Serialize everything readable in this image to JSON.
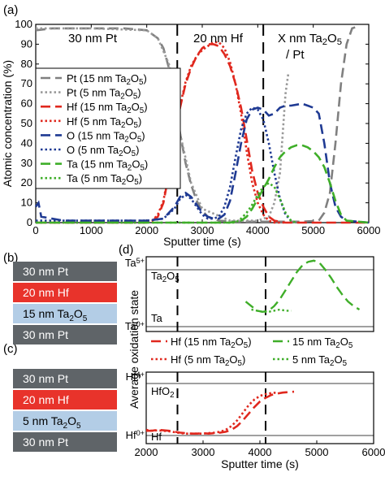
{
  "panel_labels": {
    "a": "(a)",
    "b": "(b)",
    "c": "(c)",
    "d": "(d)"
  },
  "stacks": {
    "b": [
      {
        "label": "30 nm Pt",
        "color": "#5f6468",
        "text_color": "#ffffff"
      },
      {
        "label": "20 nm Hf",
        "color": "#e8332b",
        "text_color": "#ffffff"
      },
      {
        "label": "15 nm Ta2O5",
        "color": "#b3cde6",
        "text_color": "#000000"
      },
      {
        "label": "30 nm Pt",
        "color": "#5f6468",
        "text_color": "#ffffff"
      }
    ],
    "c": [
      {
        "label": "30 nm Pt",
        "color": "#5f6468",
        "text_color": "#ffffff"
      },
      {
        "label": "20 nm Hf",
        "color": "#e8332b",
        "text_color": "#ffffff"
      },
      {
        "label": "5 nm Ta2O5",
        "color": "#b3cde6",
        "text_color": "#000000"
      },
      {
        "label": "30 nm Pt",
        "color": "#5f6468",
        "text_color": "#ffffff"
      }
    ]
  },
  "chart_data": [
    {
      "type": "line",
      "panel": "(a)",
      "xlabel": "Sputter time (s)",
      "ylabel": "Atomic concentration (%)",
      "xlim": [
        0,
        6000
      ],
      "ylim": [
        0,
        100
      ],
      "xticks": [
        0,
        1000,
        2000,
        3000,
        4000,
        5000,
        6000
      ],
      "yticks": [
        0,
        10,
        20,
        30,
        40,
        50,
        60,
        70,
        80,
        90,
        100
      ],
      "vlines": [
        2550,
        4100
      ],
      "region_labels": [
        "30 nm Pt",
        "20 nm Hf",
        "X nm Ta2O5",
        "/ Pt"
      ],
      "legend_position": "left",
      "series": [
        {
          "name": "Pt (15 nm Ta2O5)",
          "color": "#808080",
          "style": "dash",
          "x": [
            0,
            300,
            1000,
            1600,
            2000,
            2200,
            2300,
            2400,
            2500,
            2600,
            2700,
            2800,
            2900,
            3000,
            3100,
            3300,
            3600,
            4000,
            4400,
            4800,
            5100,
            5200,
            5300,
            5400,
            5500,
            5600,
            5700,
            5800
          ],
          "y": [
            97,
            98,
            98,
            98,
            97,
            93,
            88,
            78,
            64,
            45,
            30,
            19,
            11,
            6,
            3,
            1,
            0.5,
            0.5,
            0.5,
            0.5,
            1,
            5,
            15,
            40,
            70,
            90,
            98,
            99
          ]
        },
        {
          "name": "Pt (5 nm Ta2O5)",
          "color": "#999999",
          "style": "dot",
          "x": [
            0,
            1000,
            2000,
            2200,
            2400,
            2500,
            2600,
            2800,
            3000,
            3500,
            4000,
            4200,
            4300,
            4400,
            4450,
            4500,
            4550
          ],
          "y": [
            98,
            98,
            97,
            93,
            80,
            66,
            45,
            20,
            7,
            1,
            1,
            3,
            10,
            25,
            45,
            65,
            75
          ]
        },
        {
          "name": "Hf (15 nm Ta2O5)",
          "color": "#e0281e",
          "style": "dash",
          "x": [
            0,
            1000,
            2000,
            2100,
            2200,
            2300,
            2400,
            2500,
            2600,
            2700,
            2800,
            2900,
            3000,
            3100,
            3200,
            3300,
            3400,
            3500,
            3600,
            3700,
            3800,
            3900,
            4000,
            4100,
            4200,
            4300,
            4500,
            5000,
            6000
          ],
          "y": [
            0,
            0,
            0,
            1,
            3,
            10,
            25,
            42,
            58,
            70,
            78,
            84,
            88,
            90,
            90,
            89,
            85,
            79,
            70,
            58,
            42,
            26,
            15,
            8,
            3,
            1,
            0,
            0,
            0
          ]
        },
        {
          "name": "Hf (5 nm Ta2O5)",
          "color": "#e0281e",
          "style": "dot",
          "x": [
            0,
            1000,
            2000,
            2100,
            2200,
            2300,
            2400,
            2500,
            2600,
            2700,
            2800,
            2900,
            3000,
            3100,
            3200,
            3300,
            3400,
            3500,
            3600,
            3700,
            3800,
            3900,
            4000,
            4100,
            4200,
            4300,
            4500
          ],
          "y": [
            0,
            0,
            0,
            1,
            4,
            11,
            26,
            44,
            59,
            71,
            79,
            84,
            87,
            89,
            91,
            91,
            88,
            81,
            70,
            55,
            36,
            20,
            10,
            4,
            1,
            0,
            0
          ]
        },
        {
          "name": "O (15 nm Ta2O5)",
          "color": "#1f3a93",
          "style": "dash",
          "x": [
            0,
            50,
            100,
            500,
            1000,
            2000,
            2300,
            2500,
            2600,
            2700,
            2800,
            2900,
            3000,
            3100,
            3200,
            3300,
            3400,
            3500,
            3600,
            3700,
            3800,
            3900,
            4000,
            4100,
            4200,
            4300,
            4400,
            4500,
            4600,
            4800,
            5000,
            5100,
            5200,
            5300,
            5400,
            5500,
            5600,
            6000
          ],
          "y": [
            8,
            10,
            3,
            1,
            1,
            1,
            2,
            8,
            13,
            15,
            13,
            9,
            5,
            3,
            2,
            2,
            4,
            11,
            25,
            40,
            52,
            57,
            58,
            57,
            54,
            55,
            58,
            59,
            59,
            60,
            58,
            55,
            40,
            20,
            8,
            3,
            1,
            0
          ]
        },
        {
          "name": "O (5 nm Ta2O5)",
          "color": "#1f3a93",
          "style": "dot",
          "x": [
            0,
            1000,
            2000,
            2300,
            2500,
            2600,
            2700,
            2800,
            2900,
            3000,
            3100,
            3200,
            3300,
            3400,
            3500,
            3600,
            3700,
            3800,
            3900,
            4000,
            4100,
            4200,
            4300,
            4400,
            4500,
            4600
          ],
          "y": [
            1,
            1,
            1,
            2,
            7,
            12,
            14,
            12,
            8,
            4,
            2,
            2,
            3,
            8,
            18,
            33,
            47,
            55,
            58,
            57,
            52,
            40,
            25,
            12,
            4,
            1
          ]
        },
        {
          "name": "Ta (15 nm Ta2O5)",
          "color": "#3fae29",
          "style": "dash",
          "x": [
            0,
            1000,
            2000,
            3500,
            3700,
            3800,
            3900,
            4000,
            4100,
            4200,
            4300,
            4400,
            4500,
            4600,
            4700,
            4800,
            4900,
            5000,
            5100,
            5200,
            5300,
            5400,
            5500,
            5600,
            6000
          ],
          "y": [
            0,
            0,
            0,
            0,
            1,
            3,
            7,
            12,
            17,
            22,
            28,
            33,
            36,
            38,
            39,
            39,
            38,
            36,
            33,
            28,
            20,
            11,
            4,
            1,
            0
          ]
        },
        {
          "name": "Ta (5 nm Ta2O5)",
          "color": "#3fae29",
          "style": "dot",
          "x": [
            0,
            1000,
            2000,
            3600,
            3700,
            3800,
            3900,
            4000,
            4100,
            4200,
            4300,
            4400,
            4500,
            4600,
            4700
          ],
          "y": [
            0,
            0,
            0,
            0,
            2,
            5,
            9,
            14,
            18,
            20,
            18,
            12,
            5,
            1,
            0
          ]
        }
      ]
    },
    {
      "type": "line",
      "panel": "(d) top",
      "ylabel": "Average oxidation state",
      "xlim": [
        2000,
        6000
      ],
      "y_labels": [
        "Ta5+",
        "Ta0+"
      ],
      "ref_labels": [
        "Ta2O5",
        "Ta"
      ],
      "vlines": [
        2550,
        4100
      ],
      "series": [
        {
          "name": "15 nm Ta2O5",
          "color": "#3fae29",
          "style": "dash",
          "x": [
            3750,
            3850,
            3950,
            4050,
            4150,
            4250,
            4350,
            4450,
            4550,
            4650,
            4750,
            4850,
            4950,
            5050,
            5150,
            5250,
            5350,
            5450,
            5550,
            5650,
            5750
          ],
          "y": [
            0.22,
            0.18,
            0.14,
            0.13,
            0.14,
            0.18,
            0.24,
            0.32,
            0.4,
            0.48,
            0.54,
            0.57,
            0.58,
            0.56,
            0.5,
            0.43,
            0.35,
            0.28,
            0.22,
            0.18,
            0.15
          ]
        },
        {
          "name": "5 nm Ta2O5",
          "color": "#3fae29",
          "style": "dot",
          "x": [
            3850,
            3950,
            4050,
            4150,
            4250,
            4350,
            4450,
            4550
          ],
          "y": [
            0.15,
            0.14,
            0.13,
            0.13,
            0.14,
            0.15,
            0.14,
            0.14
          ]
        }
      ]
    },
    {
      "type": "line",
      "panel": "(d) bottom",
      "xlabel": "Sputter time (s)",
      "xlim": [
        2000,
        6000
      ],
      "xticks": [
        2000,
        3000,
        4000,
        5000,
        6000
      ],
      "y_labels": [
        "Hf4+",
        "Hf0+"
      ],
      "ref_labels": [
        "HfO2",
        "Hf"
      ],
      "vlines": [
        2550,
        4100
      ],
      "series": [
        {
          "name": "Hf (15 nm Ta2O5)",
          "color": "#e0281e",
          "style": "dash",
          "x": [
            2000,
            2100,
            2200,
            2300,
            2400,
            2500,
            2600,
            2700,
            2800,
            2900,
            3000,
            3100,
            3200,
            3300,
            3400,
            3500,
            3600,
            3700,
            3800,
            3900,
            4000,
            4100,
            4200,
            4300,
            4400,
            4500,
            4600
          ],
          "y": [
            0.1,
            0.1,
            0.12,
            0.11,
            0.1,
            0.08,
            0.06,
            0.05,
            0.04,
            0.04,
            0.05,
            0.04,
            0.05,
            0.06,
            0.08,
            0.12,
            0.2,
            0.32,
            0.46,
            0.6,
            0.72,
            0.8,
            0.86,
            0.89,
            0.91,
            0.92,
            0.93
          ]
        },
        {
          "name": "Hf (5 nm Ta2O5)",
          "color": "#e0281e",
          "style": "dot",
          "x": [
            2000,
            2100,
            2200,
            2300,
            2400,
            2500,
            2600,
            2700,
            2800,
            2900,
            3000,
            3100,
            3200,
            3300,
            3400,
            3500,
            3600,
            3700,
            3800,
            3900,
            4000,
            4100,
            4200,
            4300
          ],
          "y": [
            0.12,
            0.1,
            0.11,
            0.1,
            0.09,
            0.07,
            0.05,
            0.04,
            0.04,
            0.04,
            0.04,
            0.05,
            0.06,
            0.08,
            0.12,
            0.2,
            0.32,
            0.48,
            0.64,
            0.76,
            0.84,
            0.88,
            0.9,
            0.91
          ]
        }
      ]
    }
  ]
}
